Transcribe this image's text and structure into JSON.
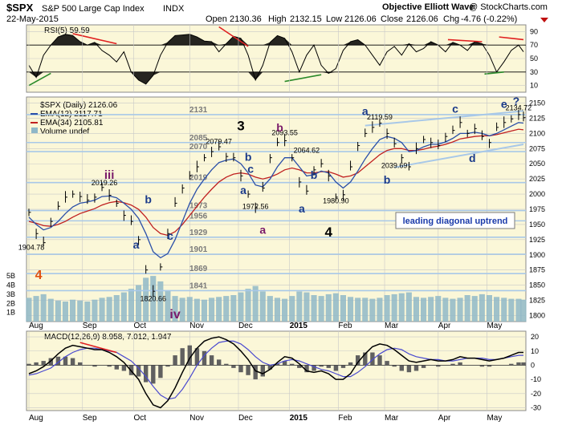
{
  "header": {
    "symbol": "$SPX",
    "name": "S&P 500 Large Cap Index",
    "exchange": "INDX",
    "date": "22-May-2015",
    "source_note": "Objective Elliott Wave",
    "copyright": "@ StockCharts.com",
    "ohlc": {
      "open_label": "Open",
      "open": "2130.36",
      "high_label": "High",
      "high": "2132.15",
      "low_label": "Low",
      "low": "2126.06",
      "close_label": "Close",
      "close": "2126.06",
      "chg_label": "Chg",
      "chg": "-4.76 (-0.22%)"
    }
  },
  "colors": {
    "panel_bg": "#fbf7d8",
    "grid": "#c8c8c8",
    "price": "#000000",
    "ema12": "#2a4fa8",
    "ema34": "#c02020",
    "volume": "#8fb8c8",
    "level": "#a8c8e8",
    "trend_red": "#e02020",
    "trend_green": "#2a8a2a",
    "wave_blue": "#1a3a8a",
    "wave_purple": "#7a1a6a",
    "wave_orange": "#e05010",
    "macd": "#000000",
    "signal": "#4a4ad0",
    "hist": "#606060",
    "blue_box_text": "#1a3aaa"
  },
  "x_axis": {
    "months": [
      {
        "label": "Aug",
        "t": 0
      },
      {
        "label": "Sep",
        "t": 22
      },
      {
        "label": "Oct",
        "t": 43
      },
      {
        "label": "Nov",
        "t": 66
      },
      {
        "label": "Dec",
        "t": 86
      },
      {
        "label": "2015",
        "t": 107
      },
      {
        "label": "Feb",
        "t": 127
      },
      {
        "label": "Mar",
        "t": 146
      },
      {
        "label": "Apr",
        "t": 168
      },
      {
        "label": "May",
        "t": 188
      }
    ],
    "t_max": 203
  },
  "chart_data": [
    {
      "type": "line",
      "panel": "rsi",
      "legend": "RSI(5) 59.59",
      "ylim": [
        0,
        100
      ],
      "y_ticks": [
        10,
        30,
        50,
        70,
        90
      ],
      "overbought": 70,
      "oversold": 30,
      "x": [
        0,
        3,
        6,
        9,
        12,
        15,
        18,
        21,
        24,
        27,
        30,
        33,
        36,
        39,
        42,
        45,
        48,
        51,
        54,
        57,
        60,
        63,
        66,
        69,
        72,
        75,
        78,
        81,
        84,
        87,
        90,
        93,
        96,
        99,
        102,
        105,
        108,
        111,
        114,
        117,
        120,
        123,
        126,
        129,
        132,
        135,
        138,
        141,
        144,
        147,
        150,
        153,
        156,
        159,
        162,
        165,
        168,
        171,
        174,
        177,
        180,
        183,
        186,
        189,
        192,
        195,
        198,
        201,
        203
      ],
      "values": [
        40,
        22,
        55,
        70,
        82,
        86,
        84,
        75,
        70,
        74,
        62,
        55,
        45,
        60,
        30,
        18,
        12,
        25,
        55,
        74,
        84,
        85,
        86,
        82,
        76,
        75,
        60,
        72,
        83,
        80,
        55,
        18,
        40,
        74,
        84,
        80,
        60,
        30,
        55,
        70,
        40,
        28,
        35,
        62,
        75,
        78,
        70,
        55,
        40,
        60,
        68,
        55,
        72,
        60,
        65,
        75,
        70,
        60,
        74,
        70,
        62,
        75,
        72,
        55,
        30,
        45,
        62,
        70,
        60
      ]
    },
    {
      "type": "line",
      "panel": "price",
      "legend": {
        "title": "$SPX (Daily) 2126.06",
        "ema12": "EMA(12) 2117.71",
        "ema34": "EMA(34) 2105.81",
        "volume": "Volume undef"
      },
      "ylim": [
        1790,
        2160
      ],
      "y_ticks": [
        1800,
        1825,
        1850,
        1875,
        1900,
        1925,
        1950,
        1975,
        2000,
        2025,
        2050,
        2075,
        2100,
        2125,
        2150
      ],
      "volume_ticks": [
        "1B",
        "2B",
        "3B",
        "4B",
        "5B"
      ],
      "x": [
        0,
        3,
        6,
        9,
        12,
        15,
        18,
        21,
        24,
        27,
        30,
        33,
        36,
        39,
        42,
        45,
        48,
        51,
        54,
        57,
        60,
        63,
        66,
        69,
        72,
        75,
        78,
        81,
        84,
        87,
        90,
        93,
        96,
        99,
        102,
        105,
        108,
        111,
        114,
        117,
        120,
        123,
        126,
        129,
        132,
        135,
        138,
        141,
        144,
        147,
        150,
        153,
        156,
        159,
        162,
        165,
        168,
        171,
        174,
        177,
        180,
        183,
        186,
        189,
        192,
        195,
        198,
        201,
        203
      ],
      "close": [
        1970,
        1935,
        1920,
        1955,
        1980,
        1995,
        2000,
        1996,
        1990,
        1995,
        2011,
        1998,
        1985,
        1965,
        1955,
        1925,
        1875,
        1840,
        1880,
        1935,
        1985,
        2010,
        2030,
        2045,
        2060,
        2070,
        2078,
        2062,
        2060,
        2030,
        2000,
        1978,
        2010,
        2060,
        2085,
        2088,
        2060,
        2020,
        2005,
        2040,
        2050,
        2030,
        1995,
        1999,
        2045,
        2080,
        2100,
        2110,
        2117,
        2100,
        2083,
        2060,
        2045,
        2075,
        2090,
        2085,
        2080,
        2095,
        2105,
        2118,
        2100,
        2108,
        2095,
        2085,
        2110,
        2118,
        2124,
        2131,
        2126
      ],
      "ema12": [
        1962,
        1950,
        1941,
        1945,
        1955,
        1968,
        1979,
        1985,
        1987,
        1990,
        1996,
        1997,
        1994,
        1985,
        1975,
        1960,
        1935,
        1905,
        1895,
        1902,
        1925,
        1955,
        1985,
        2008,
        2025,
        2040,
        2052,
        2056,
        2058,
        2050,
        2035,
        2015,
        2012,
        2025,
        2045,
        2060,
        2060,
        2045,
        2030,
        2032,
        2038,
        2035,
        2020,
        2010,
        2020,
        2038,
        2058,
        2075,
        2090,
        2095,
        2092,
        2085,
        2070,
        2072,
        2078,
        2082,
        2082,
        2086,
        2092,
        2100,
        2100,
        2102,
        2100,
        2096,
        2100,
        2106,
        2112,
        2118,
        2117
      ],
      "ema34": [
        1955,
        1952,
        1948,
        1947,
        1950,
        1955,
        1962,
        1968,
        1972,
        1976,
        1982,
        1986,
        1988,
        1986,
        1982,
        1975,
        1962,
        1945,
        1935,
        1932,
        1938,
        1950,
        1965,
        1980,
        1995,
        2008,
        2020,
        2028,
        2033,
        2035,
        2033,
        2028,
        2025,
        2028,
        2033,
        2040,
        2043,
        2040,
        2035,
        2035,
        2037,
        2037,
        2033,
        2028,
        2030,
        2035,
        2045,
        2055,
        2065,
        2072,
        2075,
        2075,
        2072,
        2072,
        2074,
        2077,
        2079,
        2082,
        2086,
        2091,
        2093,
        2095,
        2096,
        2096,
        2098,
        2101,
        2104,
        2107,
        2106
      ],
      "volume_units": "billions",
      "volume": [
        2.6,
        2.8,
        3.0,
        2.5,
        2.3,
        2.2,
        2.4,
        2.3,
        2.2,
        2.4,
        2.6,
        2.7,
        2.9,
        3.2,
        3.6,
        4.0,
        4.8,
        5.0,
        4.4,
        3.4,
        2.8,
        2.6,
        2.7,
        2.5,
        2.4,
        2.6,
        2.7,
        2.8,
        2.9,
        3.2,
        3.6,
        3.9,
        3.3,
        2.8,
        2.6,
        2.5,
        2.8,
        3.3,
        3.2,
        2.9,
        2.8,
        3.0,
        3.1,
        2.9,
        2.7,
        2.6,
        2.6,
        2.5,
        2.6,
        2.9,
        3.0,
        3.1,
        3.2,
        2.7,
        2.6,
        2.7,
        2.8,
        2.6,
        2.5,
        2.6,
        2.9,
        2.8,
        3.0,
        2.9,
        2.7,
        2.6,
        2.5,
        2.5,
        2.4
      ],
      "levels": [
        "2131",
        "2085",
        "2070",
        "2019",
        "1973",
        "1956",
        "1929",
        "1901",
        "1869",
        "1841"
      ],
      "level_values": [
        2131,
        2085,
        2070,
        2019,
        1973,
        1956,
        1929,
        1901,
        1869,
        1841
      ],
      "price_labels": [
        {
          "text": "2019.26",
          "t": 31,
          "v": 2011
        },
        {
          "text": "1904.78",
          "t": 1,
          "v": 1904
        },
        {
          "text": "1820.66",
          "t": 51,
          "v": 1820
        },
        {
          "text": "2079.47",
          "t": 78,
          "v": 2079
        },
        {
          "text": "1972.56",
          "t": 93,
          "v": 1972
        },
        {
          "text": "2093.55",
          "t": 105,
          "v": 2093
        },
        {
          "text": "2064.62",
          "t": 114,
          "v": 2064
        },
        {
          "text": "1980.90",
          "t": 126,
          "v": 1981
        },
        {
          "text": "2119.59",
          "t": 144,
          "v": 2119
        },
        {
          "text": "2039.69",
          "t": 150,
          "v": 2039
        },
        {
          "text": "2134.72",
          "t": 201,
          "v": 2134
        }
      ],
      "wave_labels": [
        {
          "text": "iii",
          "t": 33,
          "v": 2025,
          "color": "wave_purple",
          "size": 15
        },
        {
          "text": "b",
          "t": 49,
          "v": 1985,
          "color": "wave_blue",
          "size": 14
        },
        {
          "text": "a",
          "t": 44,
          "v": 1910,
          "color": "wave_blue",
          "size": 14
        },
        {
          "text": "c",
          "t": 58,
          "v": 1925,
          "color": "wave_blue",
          "size": 14
        },
        {
          "text": "iv",
          "t": 60,
          "v": 1795,
          "color": "wave_purple",
          "size": 16
        },
        {
          "text": "4",
          "t": 4,
          "v": 1860,
          "color": "wave_orange",
          "size": 16
        },
        {
          "text": "3",
          "t": 87,
          "v": 2105,
          "color": "price",
          "size": 17
        },
        {
          "text": "b",
          "t": 90,
          "v": 2055,
          "color": "wave_blue",
          "size": 14
        },
        {
          "text": "c",
          "t": 91,
          "v": 2035,
          "color": "wave_blue",
          "size": 14
        },
        {
          "text": "a",
          "t": 88,
          "v": 2000,
          "color": "wave_blue",
          "size": 14
        },
        {
          "text": "a",
          "t": 96,
          "v": 1935,
          "color": "wave_purple",
          "size": 14
        },
        {
          "text": "b",
          "t": 103,
          "v": 2103,
          "color": "wave_purple",
          "size": 14
        },
        {
          "text": "b",
          "t": 117,
          "v": 2025,
          "color": "wave_blue",
          "size": 14
        },
        {
          "text": "a",
          "t": 112,
          "v": 1970,
          "color": "wave_blue",
          "size": 14
        },
        {
          "text": "4",
          "t": 123,
          "v": 1930,
          "color": "price",
          "size": 17
        },
        {
          "text": "a",
          "t": 138,
          "v": 2130,
          "color": "wave_blue",
          "size": 14
        },
        {
          "text": "b",
          "t": 147,
          "v": 2017,
          "color": "wave_blue",
          "size": 14
        },
        {
          "text": "c",
          "t": 175,
          "v": 2134,
          "color": "wave_blue",
          "size": 14
        },
        {
          "text": "d",
          "t": 182,
          "v": 2053,
          "color": "wave_blue",
          "size": 14
        },
        {
          "text": "e",
          "t": 195,
          "v": 2142,
          "color": "wave_blue",
          "size": 14
        },
        {
          "text": "?",
          "t": 200,
          "v": 2147,
          "color": "wave_blue",
          "size": 14
        }
      ],
      "annotation_box": "leading diagonal uptrend"
    },
    {
      "type": "line",
      "panel": "macd",
      "legend": {
        "macd": "MACD(12,26,9) 8.958, 7.012, 1.947"
      },
      "ylim": [
        -32,
        24
      ],
      "y_ticks": [
        20,
        10,
        0,
        -10,
        -20,
        -30
      ],
      "x": [
        0,
        3,
        6,
        9,
        12,
        15,
        18,
        21,
        24,
        27,
        30,
        33,
        36,
        39,
        42,
        45,
        48,
        51,
        54,
        57,
        60,
        63,
        66,
        69,
        72,
        75,
        78,
        81,
        84,
        87,
        90,
        93,
        96,
        99,
        102,
        105,
        108,
        111,
        114,
        117,
        120,
        123,
        126,
        129,
        132,
        135,
        138,
        141,
        144,
        147,
        150,
        153,
        156,
        159,
        162,
        165,
        168,
        171,
        174,
        177,
        180,
        183,
        186,
        189,
        192,
        195,
        198,
        201,
        203
      ],
      "macd": [
        -6,
        -4,
        -1,
        3,
        8,
        12,
        14,
        13,
        12,
        11,
        11,
        9,
        6,
        2,
        -4,
        -10,
        -20,
        -28,
        -30,
        -25,
        -16,
        -5,
        5,
        12,
        17,
        19,
        20,
        18,
        15,
        10,
        4,
        -4,
        -6,
        -3,
        2,
        6,
        5,
        1,
        -4,
        -5,
        -4,
        -6,
        -10,
        -10,
        -6,
        2,
        8,
        13,
        15,
        14,
        11,
        7,
        3,
        2,
        3,
        4,
        3,
        3,
        4,
        6,
        5,
        5,
        4,
        3,
        4,
        5,
        7,
        9,
        9
      ],
      "signal": [
        -7,
        -6,
        -4,
        -2,
        2,
        6,
        9,
        11,
        12,
        12,
        11,
        10,
        9,
        6,
        3,
        -2,
        -8,
        -15,
        -21,
        -24,
        -23,
        -17,
        -9,
        0,
        7,
        12,
        16,
        17,
        17,
        15,
        11,
        6,
        2,
        0,
        1,
        3,
        4,
        3,
        1,
        -1,
        -3,
        -4,
        -6,
        -8,
        -8,
        -5,
        -1,
        4,
        8,
        11,
        12,
        11,
        8,
        6,
        5,
        4,
        4,
        3,
        3,
        4,
        5,
        5,
        5,
        4,
        4,
        5,
        6,
        7,
        7
      ],
      "hist": [
        1,
        2,
        3,
        5,
        6,
        6,
        5,
        2,
        0,
        -1,
        0,
        -1,
        -3,
        -4,
        -7,
        -8,
        -12,
        -13,
        -9,
        -1,
        7,
        12,
        14,
        12,
        10,
        7,
        4,
        1,
        -2,
        -5,
        -7,
        -10,
        -8,
        -3,
        1,
        3,
        1,
        -2,
        -5,
        -4,
        -1,
        -2,
        -4,
        -2,
        2,
        7,
        9,
        9,
        7,
        3,
        -1,
        -4,
        -5,
        -4,
        -2,
        0,
        -1,
        0,
        1,
        2,
        0,
        0,
        -1,
        -1,
        0,
        0,
        1,
        2,
        2
      ]
    }
  ]
}
